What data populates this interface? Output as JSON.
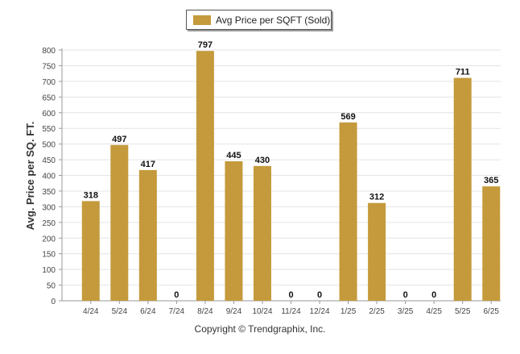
{
  "chart_data": {
    "type": "bar",
    "categories": [
      "4/24",
      "5/24",
      "6/24",
      "7/24",
      "8/24",
      "9/24",
      "10/24",
      "11/24",
      "12/24",
      "1/25",
      "2/25",
      "3/25",
      "4/25",
      "5/25",
      "6/25"
    ],
    "series": [
      {
        "name": "Avg Price per SQFT (Sold)",
        "values": [
          318,
          497,
          417,
          0,
          797,
          445,
          430,
          0,
          0,
          569,
          312,
          0,
          0,
          711,
          365
        ]
      }
    ],
    "ylabel": "Avg. Price per SQ. FT.",
    "xlabel": "",
    "ylim": [
      0,
      800
    ],
    "yticks": [
      0,
      50,
      100,
      150,
      200,
      250,
      300,
      350,
      400,
      450,
      500,
      550,
      600,
      650,
      700,
      750,
      800
    ],
    "grid": true,
    "legend_position": "top-center",
    "data_labels": true,
    "bar_color": "#c49a3c"
  },
  "footer": {
    "copyright": "Copyright © Trendgraphix, Inc."
  }
}
